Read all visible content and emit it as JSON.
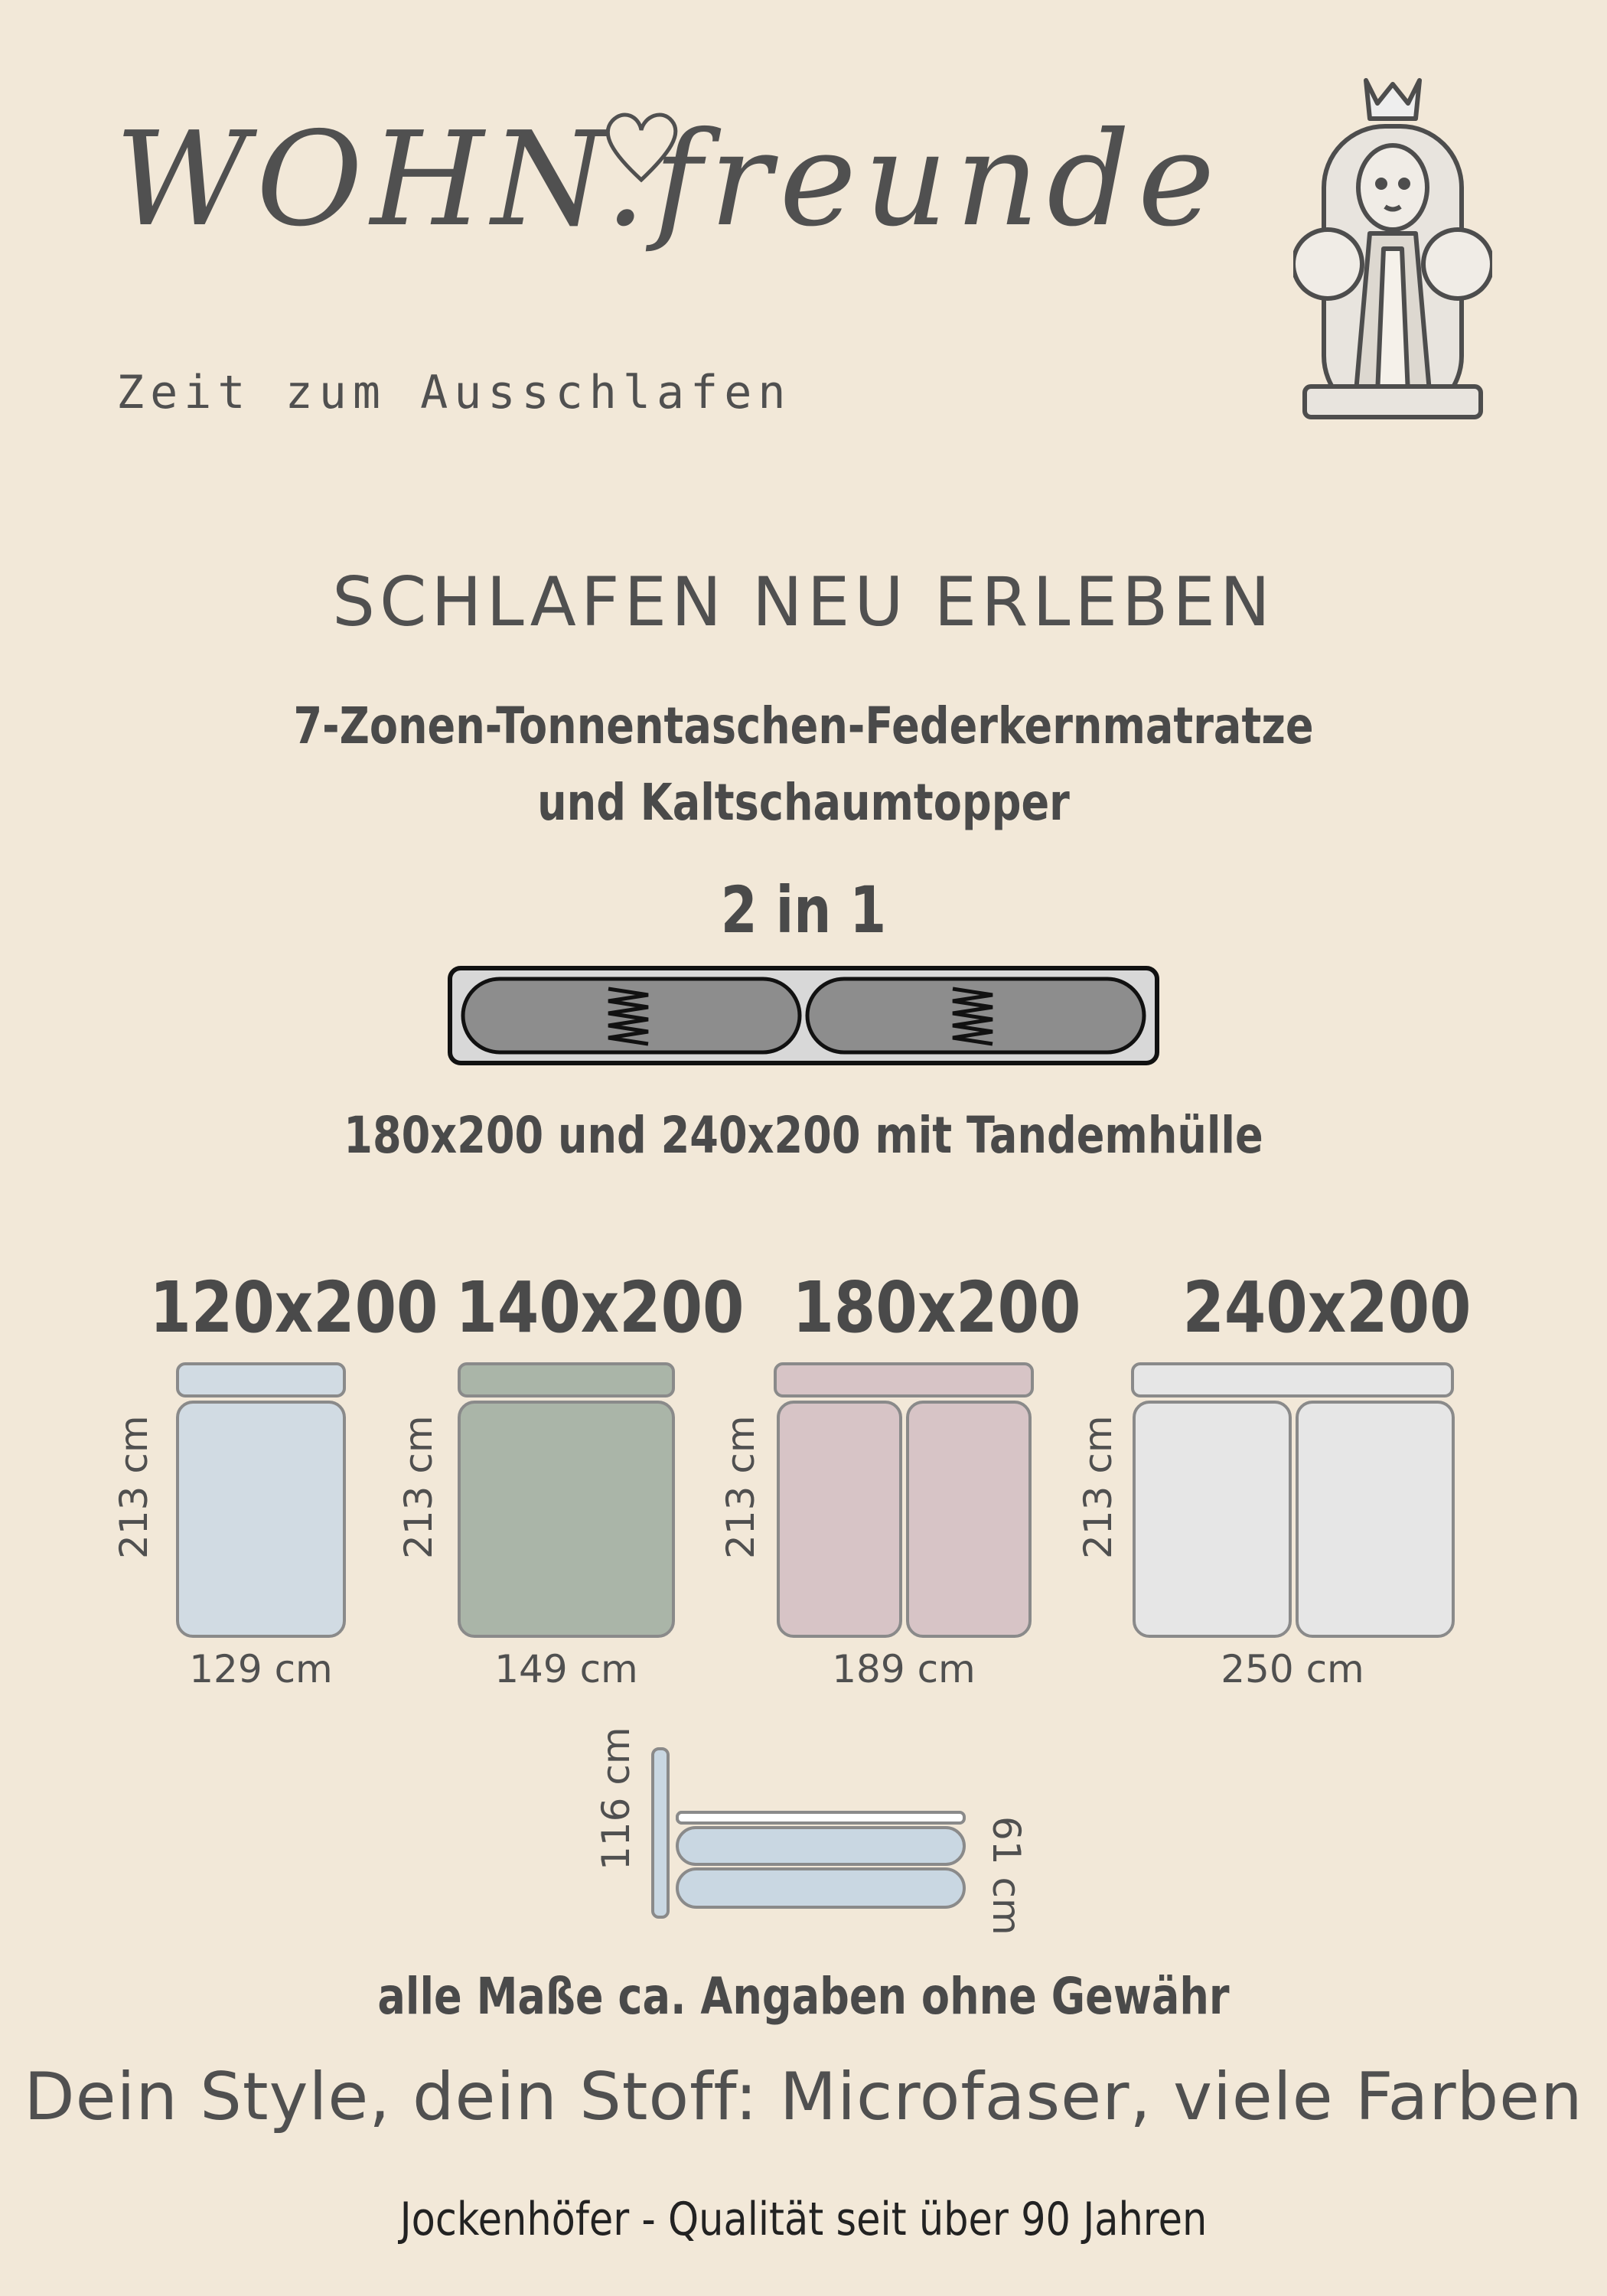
{
  "brand": {
    "logo_text": "WOHN.freunde",
    "tagline": "Zeit zum Ausschlafen"
  },
  "headline": "SCHLAFEN NEU ERLEBEN",
  "product": {
    "line1": "7-Zonen-Tonnentaschen-Federkernmatratze",
    "line2": "und Kaltschaumtopper",
    "badge": "2 in 1",
    "sizes_note": "180x200 und 240x200 mit Tandemhülle"
  },
  "sizes": [
    {
      "title": "120x200",
      "height": "213 cm",
      "width": "129 cm",
      "color": "#d1dbe3"
    },
    {
      "title": "140x200",
      "height": "213 cm",
      "width": "149 cm",
      "color": "#aab5a8"
    },
    {
      "title": "180x200",
      "height": "213 cm",
      "width": "189 cm",
      "color": "#d7c4c6"
    },
    {
      "title": "240x200",
      "height": "213 cm",
      "width": "250 cm",
      "color": "#e6e6e6"
    }
  ],
  "side_view": {
    "height": "116 cm",
    "depth": "61 cm",
    "color": "#c9d7e2"
  },
  "disclaimer": "alle Maße ca. Angaben ohne Gewähr",
  "style_line": "Dein Style, dein Stoff: Microfaser, viele Farben",
  "footer": "Jockenhöfer - Qualität seit über 90 Jahren"
}
